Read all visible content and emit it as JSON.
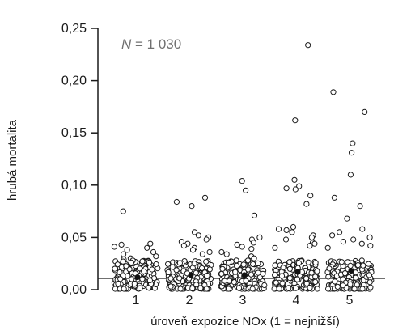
{
  "chart_data": {
    "type": "scatter",
    "subtype": "strip-plot",
    "xlabel": "úroveň expozice NOx (1 = nejnižší)",
    "ylabel": "hrubá mortalita",
    "annotation": {
      "prefix": "N",
      "text": " = 1 030"
    },
    "ylim": [
      0,
      0.25
    ],
    "ytick_values": [
      0,
      0.05,
      0.1,
      0.15,
      0.2,
      0.25
    ],
    "ytick_labels": [
      "0,00",
      "0,05",
      "0,10",
      "0,15",
      "0,20",
      "0,25"
    ],
    "categories": [
      "1",
      "2",
      "3",
      "4",
      "5"
    ],
    "reference_line": 0.011,
    "grid": false,
    "groups": [
      {
        "category": "1",
        "mean": 0.012,
        "outliers": [
          0.075,
          0.044,
          0.043,
          0.041,
          0.04,
          0.038,
          0.036,
          0.034,
          0.032,
          0.03,
          0.029,
          0.028,
          0.027,
          0.026
        ]
      },
      {
        "category": "2",
        "mean": 0.014,
        "outliers": [
          0.088,
          0.084,
          0.08,
          0.055,
          0.052,
          0.05,
          0.048,
          0.046,
          0.044,
          0.042,
          0.04,
          0.038,
          0.036,
          0.034
        ]
      },
      {
        "category": "3",
        "mean": 0.014,
        "outliers": [
          0.104,
          0.095,
          0.071,
          0.05,
          0.048,
          0.045,
          0.043,
          0.041,
          0.039,
          0.036,
          0.034,
          0.032,
          0.03,
          0.028
        ]
      },
      {
        "category": "4",
        "mean": 0.017,
        "outliers": [
          0.234,
          0.162,
          0.105,
          0.099,
          0.097,
          0.096,
          0.09,
          0.082,
          0.06,
          0.058,
          0.057,
          0.055,
          0.052,
          0.05,
          0.048,
          0.045,
          0.044,
          0.042,
          0.04
        ]
      },
      {
        "category": "5",
        "mean": 0.018,
        "outliers": [
          0.189,
          0.17,
          0.14,
          0.131,
          0.11,
          0.088,
          0.08,
          0.068,
          0.058,
          0.055,
          0.052,
          0.05,
          0.048,
          0.046,
          0.044,
          0.042,
          0.04
        ]
      }
    ]
  }
}
